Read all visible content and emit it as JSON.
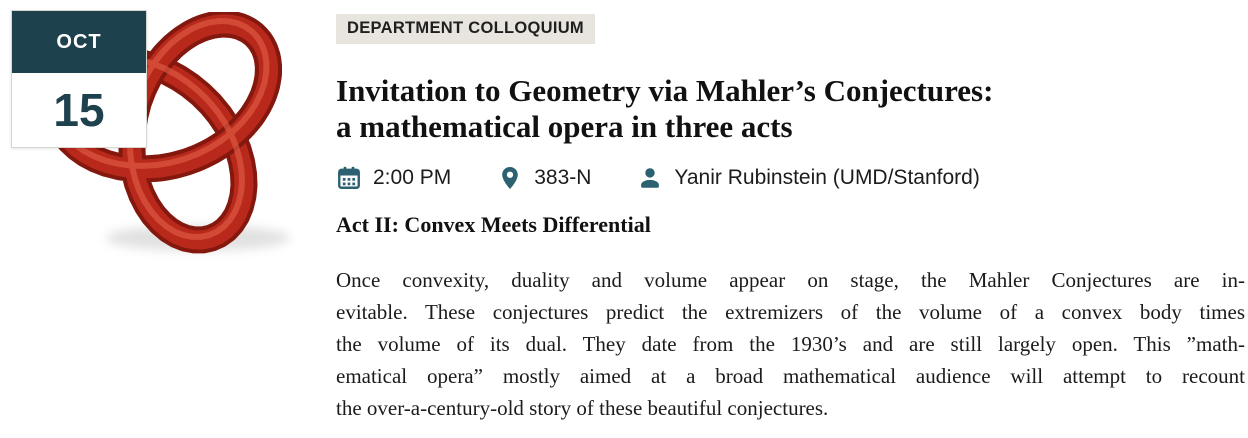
{
  "colors": {
    "accent_teal_dark": "#1d424e",
    "accent_teal_icon": "#2b6170",
    "category_chip_bg": "#e8e5df",
    "text_primary": "#1b1b1b",
    "knot_red": "#b9291b",
    "knot_red_dark": "#84180e",
    "knot_red_highlight": "#de5a45"
  },
  "date_badge": {
    "month": "OCT",
    "day": "15"
  },
  "event": {
    "category": "DEPARTMENT COLLOQUIUM",
    "title_lines": [
      "Invitation to Geometry via Mahler’s Conjectures:",
      "a mathematical opera in three acts"
    ],
    "time": "2:00 PM",
    "location": "383-N",
    "speaker": "Yanir Rubinstein (UMD/Stanford)",
    "subtitle": "Act II: Convex Meets Differential",
    "abstract_lines": [
      "Once convexity, duality and volume appear on stage, the Mahler Conjectures are in-",
      "evitable. These conjectures predict the extremizers of the volume of a convex body times",
      "the volume of its dual. They date from the 1930’s and are still largely open. This ”math-",
      "ematical opera” mostly aimed at a broad mathematical audience will attempt to recount",
      "the over-a-century-old story of these beautiful conjectures."
    ]
  },
  "icons": {
    "time_icon": "calendar-icon",
    "location_icon": "location-pin-icon",
    "speaker_icon": "person-icon",
    "visual": "trefoil-knot-image"
  }
}
